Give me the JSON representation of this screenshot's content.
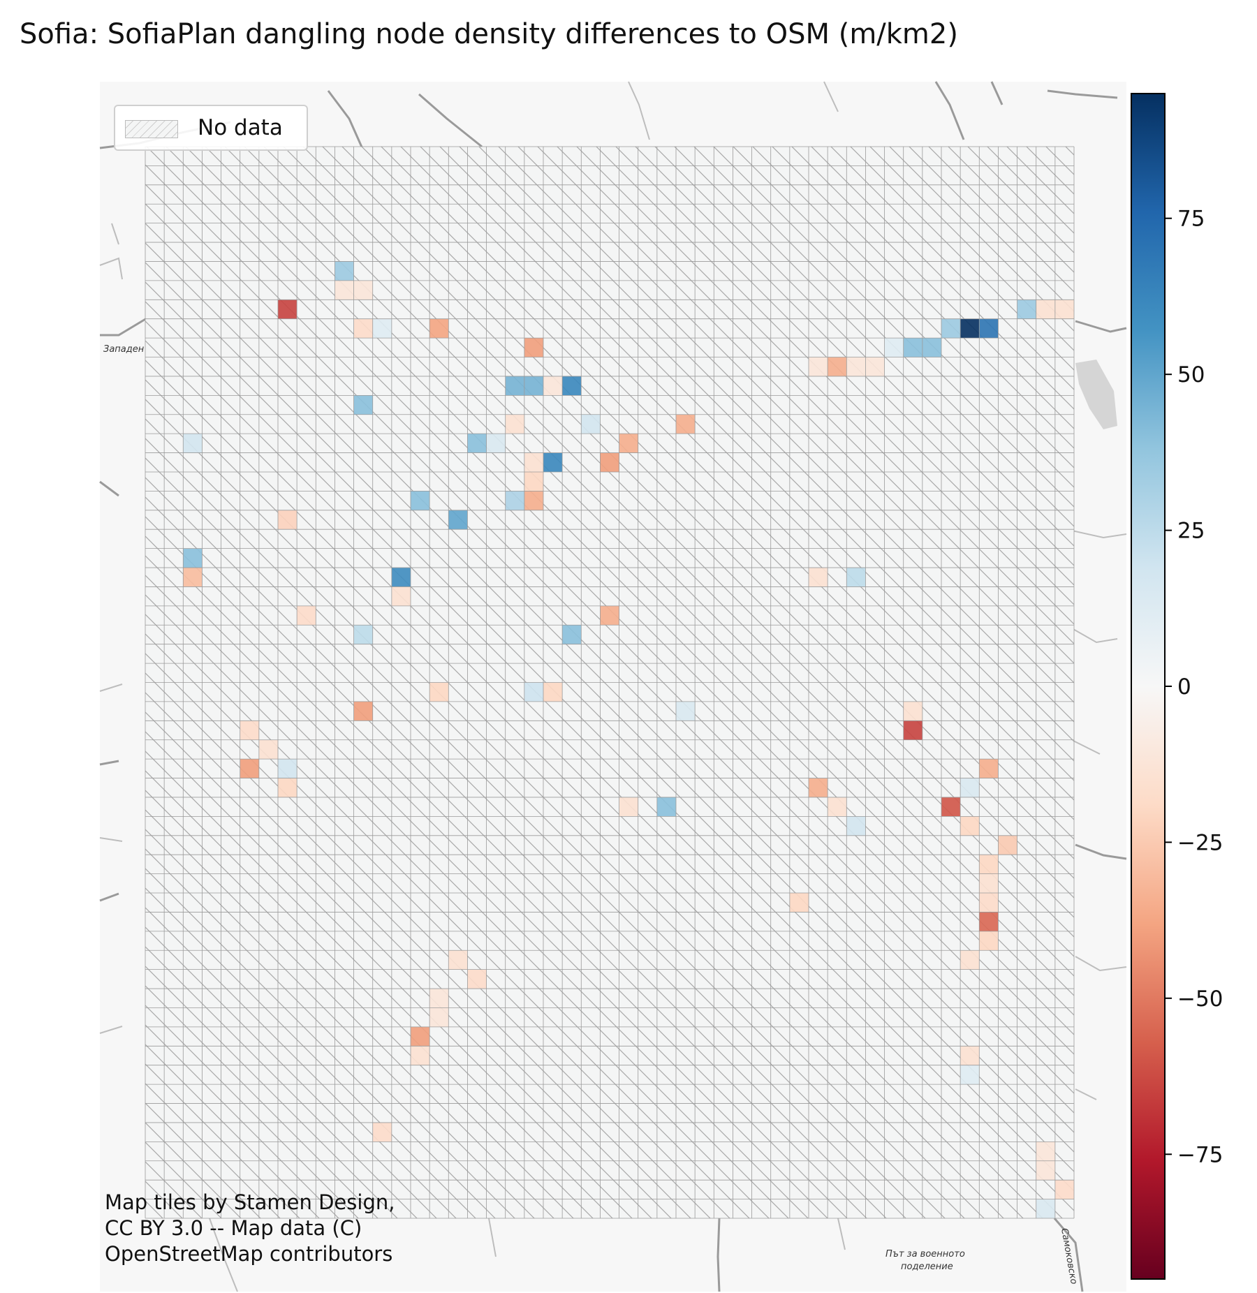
{
  "title": "Sofia: SofiaPlan dangling node density differences to OSM (m/km2)",
  "legend": {
    "label": "No data"
  },
  "attribution": [
    "Map tiles by Stamen Design,",
    "CC BY 3.0 -- Map data (C)",
    "OpenStreetMap contributors"
  ],
  "place_labels": [
    "Западен п",
    "Път за военното",
    "поделение",
    "Самоковско"
  ],
  "colorbar": {
    "cmap": "RdBu",
    "vmin": -95,
    "vmax": 95,
    "ticks": [
      {
        "value": 75,
        "label": "75"
      },
      {
        "value": 50,
        "label": "50"
      },
      {
        "value": 25,
        "label": "25"
      },
      {
        "value": 0,
        "label": "0"
      },
      {
        "value": -25,
        "label": "−25"
      },
      {
        "value": -50,
        "label": "−50"
      },
      {
        "value": -75,
        "label": "−75"
      }
    ]
  },
  "grid": {
    "cols": 49,
    "rows": 56
  },
  "colors": {
    "no_data_fill": "#f4f5f5",
    "grid_line": "#9a9a9a",
    "hatch": "#a8a8a8"
  },
  "cells": [
    [
      10,
      6,
      35
    ],
    [
      10,
      7,
      -12
    ],
    [
      11,
      7,
      -12
    ],
    [
      7,
      8,
      -65
    ],
    [
      11,
      9,
      -18
    ],
    [
      12,
      9,
      12
    ],
    [
      15,
      9,
      -38
    ],
    [
      20,
      10,
      -40
    ],
    [
      19,
      12,
      45
    ],
    [
      20,
      12,
      45
    ],
    [
      21,
      12,
      -12
    ],
    [
      22,
      12,
      62
    ],
    [
      11,
      13,
      40
    ],
    [
      19,
      14,
      -15
    ],
    [
      23,
      14,
      18
    ],
    [
      28,
      14,
      -35
    ],
    [
      2,
      15,
      18
    ],
    [
      17,
      15,
      40
    ],
    [
      18,
      15,
      15
    ],
    [
      25,
      15,
      -35
    ],
    [
      20,
      16,
      -15
    ],
    [
      21,
      16,
      62
    ],
    [
      24,
      16,
      -40
    ],
    [
      20,
      17,
      -20
    ],
    [
      14,
      18,
      40
    ],
    [
      19,
      18,
      30
    ],
    [
      20,
      18,
      -35
    ],
    [
      7,
      19,
      -22
    ],
    [
      16,
      19,
      50
    ],
    [
      2,
      21,
      40
    ],
    [
      2,
      22,
      -30
    ],
    [
      13,
      22,
      60
    ],
    [
      13,
      23,
      -15
    ],
    [
      8,
      24,
      -18
    ],
    [
      24,
      24,
      -35
    ],
    [
      11,
      25,
      25
    ],
    [
      22,
      25,
      40
    ],
    [
      15,
      28,
      -20
    ],
    [
      20,
      28,
      20
    ],
    [
      21,
      28,
      -20
    ],
    [
      11,
      29,
      -40
    ],
    [
      28,
      29,
      15
    ],
    [
      5,
      30,
      -18
    ],
    [
      6,
      31,
      -15
    ],
    [
      5,
      32,
      -40
    ],
    [
      7,
      32,
      18
    ],
    [
      7,
      33,
      -20
    ],
    [
      25,
      34,
      -15
    ],
    [
      27,
      34,
      40
    ],
    [
      35,
      22,
      -15
    ],
    [
      37,
      22,
      25
    ],
    [
      35,
      11,
      -12
    ],
    [
      36,
      11,
      -35
    ],
    [
      37,
      11,
      -12
    ],
    [
      38,
      11,
      -12
    ],
    [
      39,
      10,
      12
    ],
    [
      40,
      10,
      40
    ],
    [
      41,
      10,
      40
    ],
    [
      42,
      9,
      35
    ],
    [
      43,
      9,
      95
    ],
    [
      44,
      9,
      70
    ],
    [
      46,
      8,
      35
    ],
    [
      47,
      8,
      -15
    ],
    [
      48,
      8,
      -15
    ],
    [
      40,
      29,
      -15
    ],
    [
      40,
      30,
      -65
    ],
    [
      35,
      33,
      -35
    ],
    [
      36,
      34,
      -15
    ],
    [
      37,
      35,
      18
    ],
    [
      43,
      33,
      15
    ],
    [
      44,
      32,
      -35
    ],
    [
      42,
      34,
      -60
    ],
    [
      43,
      35,
      -20
    ],
    [
      45,
      36,
      -25
    ],
    [
      44,
      37,
      -20
    ],
    [
      44,
      38,
      -15
    ],
    [
      44,
      39,
      -18
    ],
    [
      34,
      39,
      -20
    ],
    [
      44,
      40,
      -55
    ],
    [
      44,
      41,
      -20
    ],
    [
      43,
      42,
      -15
    ],
    [
      16,
      42,
      -15
    ],
    [
      17,
      43,
      -18
    ],
    [
      15,
      44,
      -12
    ],
    [
      15,
      45,
      -12
    ],
    [
      14,
      46,
      -40
    ],
    [
      14,
      47,
      -15
    ],
    [
      43,
      47,
      -15
    ],
    [
      43,
      48,
      12
    ],
    [
      12,
      51,
      -18
    ],
    [
      47,
      52,
      -12
    ],
    [
      47,
      53,
      -12
    ],
    [
      48,
      54,
      -18
    ],
    [
      47,
      55,
      15
    ]
  ]
}
